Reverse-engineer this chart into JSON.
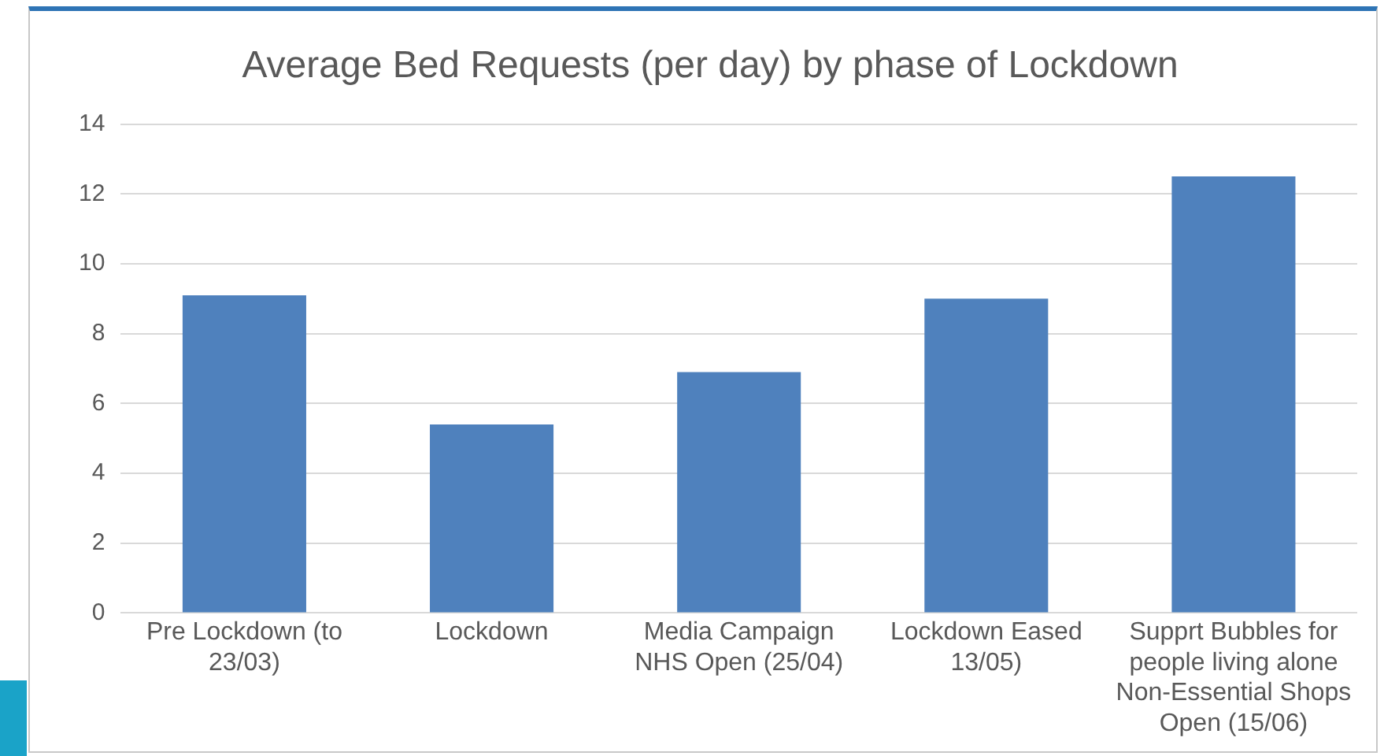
{
  "chart_data": {
    "type": "bar",
    "title": "Average Bed Requests (per day) by phase of Lockdown",
    "categories": [
      "Pre Lockdown (to 23/03)",
      "Lockdown",
      "Media Campaign NHS Open (25/04)",
      "Lockdown Eased 13/05)",
      "Supprt Bubbles for people living alone Non-Essential Shops Open (15/06)"
    ],
    "values": [
      9.1,
      5.4,
      6.9,
      9.0,
      12.5
    ],
    "color": "#4f81bd",
    "ylim": [
      0,
      14
    ],
    "yticks": [
      0,
      2,
      4,
      6,
      8,
      10,
      12,
      14
    ],
    "grid": "y",
    "legend": false
  }
}
